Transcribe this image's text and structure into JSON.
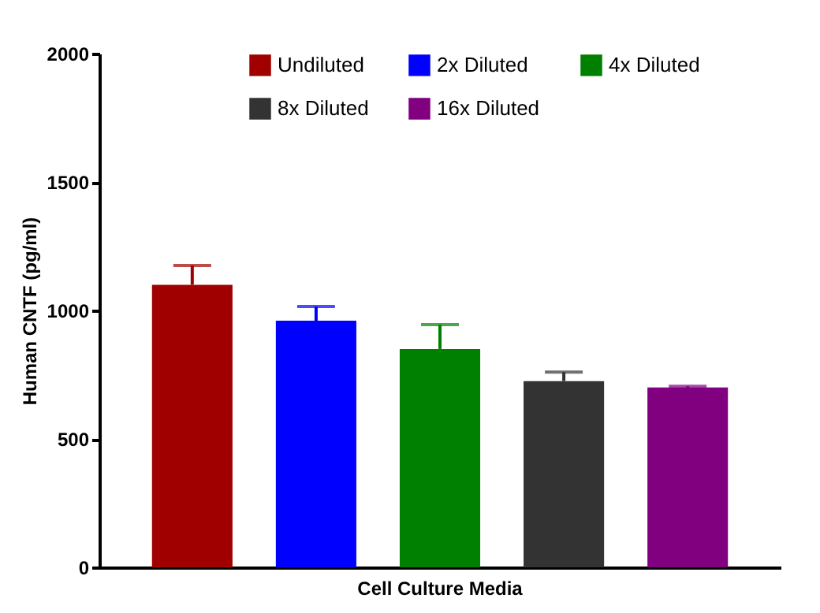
{
  "chart_data": {
    "type": "bar",
    "ylabel": "Human CNTF (pg/ml)",
    "categories": [
      "Cell  Culture Media"
    ],
    "series": [
      {
        "name": "Undiluted",
        "color": "#a00000",
        "values": [
          1100
        ],
        "errors": [
          [
            1100,
            1175
          ]
        ]
      },
      {
        "name": "2x Diluted",
        "color": "#0000ff",
        "values": [
          960
        ],
        "errors": [
          [
            960,
            1015
          ]
        ]
      },
      {
        "name": "4x Diluted",
        "color": "#008000",
        "values": [
          850
        ],
        "errors": [
          [
            850,
            945
          ]
        ]
      },
      {
        "name": "8x Diluted",
        "color": "#333333",
        "values": [
          725
        ],
        "errors": [
          [
            725,
            760
          ]
        ]
      },
      {
        "name": "16x Diluted",
        "color": "#800080",
        "values": [
          700
        ],
        "errors": [
          [
            700,
            705
          ]
        ]
      }
    ],
    "ylim": [
      0,
      2000
    ],
    "yticks": [
      0,
      500,
      1000,
      1500,
      2000
    ],
    "grid": false,
    "legend": "top"
  }
}
